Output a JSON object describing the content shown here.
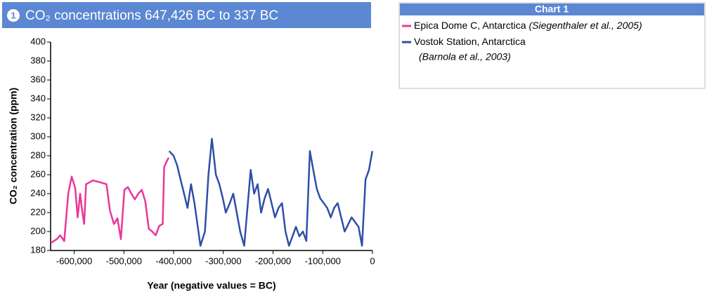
{
  "chart_data": {
    "type": "line",
    "badge": "1",
    "title": "CO₂ concentrations 647,426 BC to 337 BC",
    "ylabel": "CO₂ concentration (ppm)",
    "xlabel": "Year (negative values = BC)",
    "legend_title": "Chart 1",
    "xlim": [
      -647426,
      0
    ],
    "ylim": [
      180,
      400
    ],
    "xticks": [
      {
        "value": -600000,
        "label": "-600,000"
      },
      {
        "value": -500000,
        "label": "-500,000"
      },
      {
        "value": -400000,
        "label": "-400,000"
      },
      {
        "value": -300000,
        "label": "-300,000"
      },
      {
        "value": -200000,
        "label": "-200,000"
      },
      {
        "value": -100000,
        "label": "-100,000"
      },
      0
    ],
    "yticks": [
      180,
      200,
      220,
      240,
      260,
      280,
      300,
      320,
      340,
      360,
      380,
      400
    ],
    "series": [
      {
        "name": "Epica Dome C, Antarctica",
        "citation": "(Siegenthaler et al., 2005)",
        "color": "#e8389a",
        "x": [
          -647000,
          -635000,
          -628000,
          -620000,
          -612000,
          -605000,
          -598000,
          -593000,
          -588000,
          -584000,
          -580000,
          -576000,
          -562000,
          -548000,
          -535000,
          -528000,
          -520000,
          -513000,
          -506000,
          -499000,
          -492000,
          -485000,
          -478000,
          -471000,
          -464000,
          -457000,
          -450000,
          -443000,
          -436000,
          -429000,
          -422000,
          -419000,
          -414000,
          -410000
        ],
        "values": [
          188,
          192,
          196,
          190,
          240,
          258,
          246,
          215,
          240,
          222,
          208,
          250,
          254,
          252,
          250,
          222,
          208,
          214,
          192,
          244,
          247,
          240,
          234,
          240,
          244,
          232,
          203,
          200,
          196,
          206,
          208,
          268,
          274,
          278
        ]
      },
      {
        "name": "Vostok Station, Antarctica",
        "citation": "(Barnola et al., 2003)",
        "color": "#2e4fa8",
        "x": [
          -409000,
          -400000,
          -393000,
          -386000,
          -379000,
          -372000,
          -365000,
          -358000,
          -346000,
          -337000,
          -330000,
          -323000,
          -315000,
          -308000,
          -301000,
          -295000,
          -287000,
          -280000,
          -266000,
          -258000,
          -245000,
          -238000,
          -231000,
          -224000,
          -217000,
          -210000,
          -203000,
          -196000,
          -189000,
          -182000,
          -175000,
          -168000,
          -154000,
          -147000,
          -140000,
          -133000,
          -126000,
          -119000,
          -112000,
          -105000,
          -98000,
          -91000,
          -84000,
          -77000,
          -70000,
          -56000,
          -42000,
          -35000,
          -28000,
          -21000,
          -14000,
          -7000,
          -337
        ],
        "values": [
          285,
          280,
          270,
          255,
          240,
          225,
          250,
          230,
          185,
          200,
          260,
          298,
          260,
          250,
          235,
          220,
          230,
          240,
          200,
          185,
          265,
          240,
          250,
          220,
          235,
          245,
          230,
          215,
          225,
          230,
          200,
          185,
          205,
          195,
          200,
          190,
          285,
          265,
          245,
          235,
          230,
          225,
          215,
          225,
          230,
          200,
          215,
          210,
          205,
          185,
          255,
          265,
          285
        ]
      }
    ]
  }
}
